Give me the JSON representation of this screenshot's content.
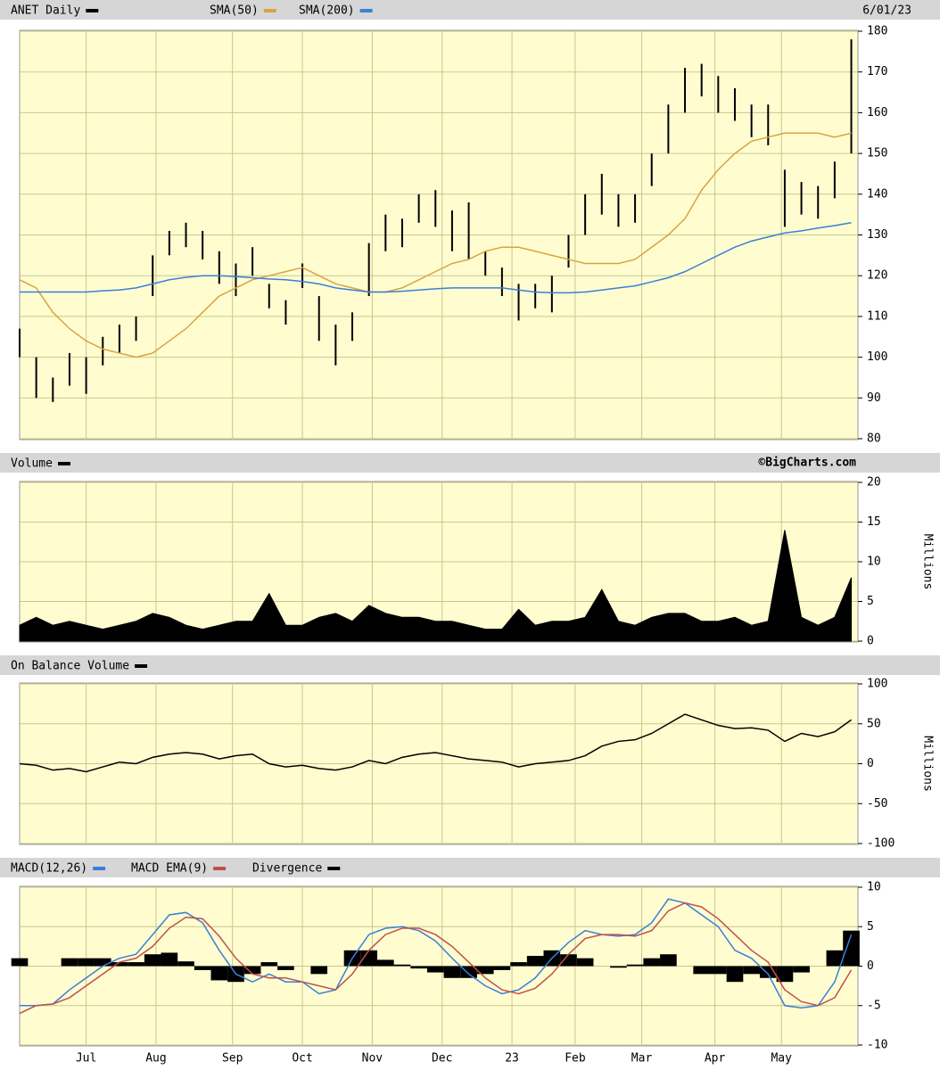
{
  "chart_data": [
    {
      "type": "combo",
      "date": "6/01/23",
      "x": [
        0,
        5,
        10,
        15,
        20,
        25,
        30,
        35,
        40,
        45,
        50,
        55,
        60,
        65,
        70,
        75,
        80,
        85,
        90,
        95,
        100,
        105,
        110,
        115,
        120,
        125,
        130,
        135,
        140,
        145,
        150,
        155,
        160,
        165,
        170,
        175,
        180,
        185,
        190,
        195,
        200,
        205,
        210,
        215,
        220,
        225,
        230,
        235,
        240,
        245,
        250
      ],
      "ylim": [
        80,
        180
      ],
      "yticks": [
        80,
        90,
        100,
        110,
        120,
        130,
        140,
        150,
        160,
        170,
        180
      ],
      "grid": true,
      "series": [
        {
          "name": "ANET Daily",
          "type": "hilo",
          "color": "#000000",
          "high": [
            107,
            100,
            95,
            101,
            100,
            105,
            108,
            110,
            125,
            131,
            133,
            131,
            126,
            123,
            127,
            118,
            114,
            123,
            115,
            108,
            111,
            128,
            135,
            134,
            140,
            141,
            136,
            138,
            126,
            122,
            118,
            118,
            120,
            130,
            140,
            145,
            140,
            140,
            150,
            162,
            171,
            172,
            169,
            166,
            162,
            162,
            146,
            143,
            142,
            148,
            178
          ],
          "low": [
            100,
            90,
            89,
            93,
            91,
            98,
            101,
            104,
            115,
            125,
            127,
            124,
            118,
            115,
            120,
            112,
            108,
            117,
            104,
            98,
            104,
            115,
            126,
            127,
            133,
            132,
            126,
            124,
            120,
            115,
            109,
            112,
            111,
            122,
            130,
            135,
            132,
            133,
            142,
            150,
            160,
            164,
            160,
            158,
            154,
            152,
            132,
            135,
            134,
            139,
            150
          ]
        },
        {
          "name": "SMA(50)",
          "type": "line",
          "color": "#d9a441",
          "values": [
            119,
            117,
            111,
            107,
            104,
            102,
            101,
            100,
            101,
            104,
            107,
            111,
            115,
            117,
            119,
            120,
            121,
            122,
            120,
            118,
            117,
            116,
            116,
            117,
            119,
            121,
            123,
            124,
            126,
            127,
            127,
            126,
            125,
            124,
            123,
            123,
            123,
            124,
            127,
            130,
            134,
            141,
            146,
            150,
            153,
            154,
            155,
            155,
            155,
            154,
            155
          ]
        },
        {
          "name": "SMA(200)",
          "type": "line",
          "color": "#3a7fd9",
          "values": [
            116,
            116,
            116,
            116,
            116,
            116.3,
            116.5,
            117,
            118,
            119,
            119.6,
            120,
            120,
            119.8,
            119.5,
            119.2,
            119,
            118.6,
            118,
            117,
            116.5,
            116,
            116,
            116.2,
            116.5,
            116.8,
            117,
            117,
            117,
            117,
            116.5,
            116,
            115.8,
            115.8,
            116,
            116.5,
            117,
            117.5,
            118.5,
            119.5,
            121,
            123,
            125,
            127,
            128.5,
            129.5,
            130.5,
            131,
            131.7,
            132.3,
            133
          ]
        }
      ]
    },
    {
      "type": "area",
      "source": "©BigCharts.com",
      "ylabel": "Millions",
      "x": [
        0,
        5,
        10,
        15,
        20,
        25,
        30,
        35,
        40,
        45,
        50,
        55,
        60,
        65,
        70,
        75,
        80,
        85,
        90,
        95,
        100,
        105,
        110,
        115,
        120,
        125,
        130,
        135,
        140,
        145,
        150,
        155,
        160,
        165,
        170,
        175,
        180,
        185,
        190,
        195,
        200,
        205,
        210,
        215,
        220,
        225,
        230,
        235,
        240,
        245,
        250
      ],
      "ylim": [
        0,
        20
      ],
      "yticks": [
        0,
        5,
        10,
        15,
        20
      ],
      "grid": true,
      "series": [
        {
          "name": "Volume",
          "type": "area",
          "color": "#000000",
          "values": [
            2,
            3,
            2,
            2.5,
            2,
            1.5,
            2,
            2.5,
            3.5,
            3,
            2,
            1.5,
            2,
            2.5,
            2.5,
            6,
            2,
            2,
            3,
            3.5,
            2.5,
            4.5,
            3.5,
            3,
            3,
            2.5,
            2.5,
            2,
            1.5,
            1.5,
            4,
            2,
            2.5,
            2.5,
            3,
            6.5,
            2.5,
            2,
            3,
            3.5,
            3.5,
            2.5,
            2.5,
            3,
            2,
            2.5,
            14,
            3,
            2,
            3,
            8
          ]
        }
      ]
    },
    {
      "type": "line",
      "ylabel": "Millions",
      "x": [
        0,
        5,
        10,
        15,
        20,
        25,
        30,
        35,
        40,
        45,
        50,
        55,
        60,
        65,
        70,
        75,
        80,
        85,
        90,
        95,
        100,
        105,
        110,
        115,
        120,
        125,
        130,
        135,
        140,
        145,
        150,
        155,
        160,
        165,
        170,
        175,
        180,
        185,
        190,
        195,
        200,
        205,
        210,
        215,
        220,
        225,
        230,
        235,
        240,
        245,
        250
      ],
      "ylim": [
        -100,
        100
      ],
      "yticks": [
        -100,
        -50,
        0,
        50,
        100
      ],
      "grid": true,
      "series": [
        {
          "name": "On Balance Volume",
          "type": "line",
          "color": "#000000",
          "values": [
            0,
            -2,
            -8,
            -6,
            -10,
            -4,
            2,
            0,
            8,
            12,
            14,
            12,
            6,
            10,
            12,
            0,
            -4,
            -2,
            -6,
            -8,
            -4,
            4,
            0,
            8,
            12,
            14,
            10,
            6,
            4,
            2,
            -4,
            0,
            2,
            4,
            10,
            22,
            28,
            30,
            38,
            50,
            62,
            55,
            48,
            44,
            45,
            42,
            28,
            38,
            34,
            40,
            55
          ]
        }
      ]
    },
    {
      "type": "combo",
      "x": [
        0,
        5,
        10,
        15,
        20,
        25,
        30,
        35,
        40,
        45,
        50,
        55,
        60,
        65,
        70,
        75,
        80,
        85,
        90,
        95,
        100,
        105,
        110,
        115,
        120,
        125,
        130,
        135,
        140,
        145,
        150,
        155,
        160,
        165,
        170,
        175,
        180,
        185,
        190,
        195,
        200,
        205,
        210,
        215,
        220,
        225,
        230,
        235,
        240,
        245,
        250
      ],
      "xlim": [
        0,
        252
      ],
      "xticks": [
        {
          "value": 20,
          "label": "Jul"
        },
        {
          "value": 41,
          "label": "Aug"
        },
        {
          "value": 64,
          "label": "Sep"
        },
        {
          "value": 85,
          "label": "Oct"
        },
        {
          "value": 106,
          "label": "Nov"
        },
        {
          "value": 127,
          "label": "Dec"
        },
        {
          "value": 148,
          "label": "23"
        },
        {
          "value": 167,
          "label": "Feb"
        },
        {
          "value": 187,
          "label": "Mar"
        },
        {
          "value": 209,
          "label": "Apr"
        },
        {
          "value": 229,
          "label": "May"
        }
      ],
      "ylim": [
        -10,
        10
      ],
      "yticks": [
        -10,
        -5,
        0,
        5,
        10
      ],
      "grid": true,
      "series": [
        {
          "name": "MACD(12,26)",
          "type": "line",
          "color": "#3a7fd9",
          "values": [
            -5,
            -5,
            -4.8,
            -3,
            -1.5,
            0,
            1,
            1.5,
            4,
            6.5,
            6.8,
            5.5,
            2,
            -1,
            -2,
            -1,
            -2,
            -2,
            -3.5,
            -3,
            1,
            4,
            4.8,
            5,
            4.5,
            3.2,
            1,
            -1,
            -2.5,
            -3.5,
            -3,
            -1.5,
            1,
            3,
            4.5,
            4,
            3.8,
            4,
            5.5,
            8.5,
            8,
            6.5,
            5,
            2,
            1,
            -1,
            -5,
            -5.3,
            -5,
            -2,
            4
          ]
        },
        {
          "name": "MACD EMA(9)",
          "type": "line",
          "color": "#c0504d",
          "values": [
            -6,
            -5,
            -4.8,
            -4,
            -2.5,
            -1,
            0.5,
            1,
            2.5,
            4.8,
            6.2,
            6,
            3.8,
            1,
            -1,
            -1.5,
            -1.5,
            -2,
            -2.5,
            -3,
            -1,
            2,
            4,
            4.8,
            4.8,
            4,
            2.5,
            0.5,
            -1.5,
            -3,
            -3.5,
            -2.8,
            -1,
            1.5,
            3.5,
            4,
            4,
            3.8,
            4.5,
            7,
            8,
            7.5,
            6,
            4,
            2,
            0.5,
            -3,
            -4.5,
            -5,
            -4,
            -0.5
          ]
        },
        {
          "name": "Divergence",
          "type": "bar",
          "color": "#000000",
          "values": [
            1,
            0,
            0,
            1,
            1,
            1,
            0.5,
            0.5,
            1.5,
            1.7,
            0.6,
            -0.5,
            -1.8,
            -2,
            -1,
            0.5,
            -0.5,
            0,
            -1,
            0,
            2,
            2,
            0.8,
            0.2,
            -0.3,
            -0.8,
            -1.5,
            -1.5,
            -1,
            -0.5,
            0.5,
            1.3,
            2,
            1.5,
            1,
            0,
            -0.2,
            0.2,
            1,
            1.5,
            0,
            -1,
            -1,
            -2,
            -1,
            -1.5,
            -2,
            -0.8,
            0,
            2,
            4.5
          ]
        }
      ]
    }
  ]
}
